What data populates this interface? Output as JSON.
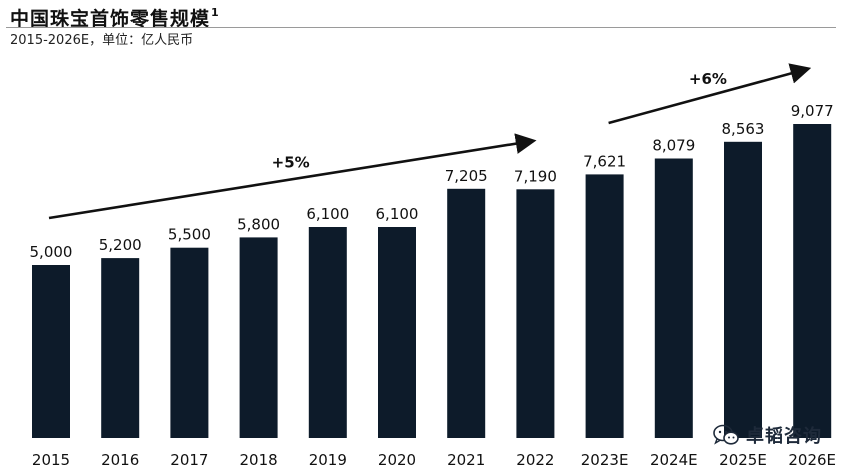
{
  "header": {
    "title": "中国珠宝首饰零售规模",
    "title_footnote": "1",
    "subtitle": "2015-2026E，单位：亿人民币"
  },
  "colors": {
    "bar": "#0d1b2a",
    "text": "#111111",
    "arrow": "#111111"
  },
  "chart_data": {
    "type": "bar",
    "title": "中国珠宝首饰零售规模",
    "subtitle": "2015-2026E，单位：亿人民币",
    "categories": [
      "2015",
      "2016",
      "2017",
      "2018",
      "2019",
      "2020",
      "2021",
      "2022",
      "2023E",
      "2024E",
      "2025E",
      "2026E"
    ],
    "values": [
      5000,
      5200,
      5500,
      5800,
      6100,
      6100,
      7205,
      7190,
      7621,
      8079,
      8563,
      9077
    ],
    "value_labels": [
      "5,000",
      "5,200",
      "5,500",
      "5,800",
      "6,100",
      "6,100",
      "7,205",
      "7,190",
      "7,621",
      "8,079",
      "8,563",
      "9,077"
    ],
    "xlabel": "",
    "ylabel": "",
    "ylim": [
      0,
      10000
    ],
    "grid": false,
    "annotations": [
      {
        "label": "+5%",
        "from_category": "2015",
        "to_category": "2022"
      },
      {
        "label": "+6%",
        "from_category": "2023E",
        "to_category": "2026E"
      }
    ]
  },
  "watermark": {
    "icon": "wechat-icon",
    "text": "卓韬咨询"
  }
}
